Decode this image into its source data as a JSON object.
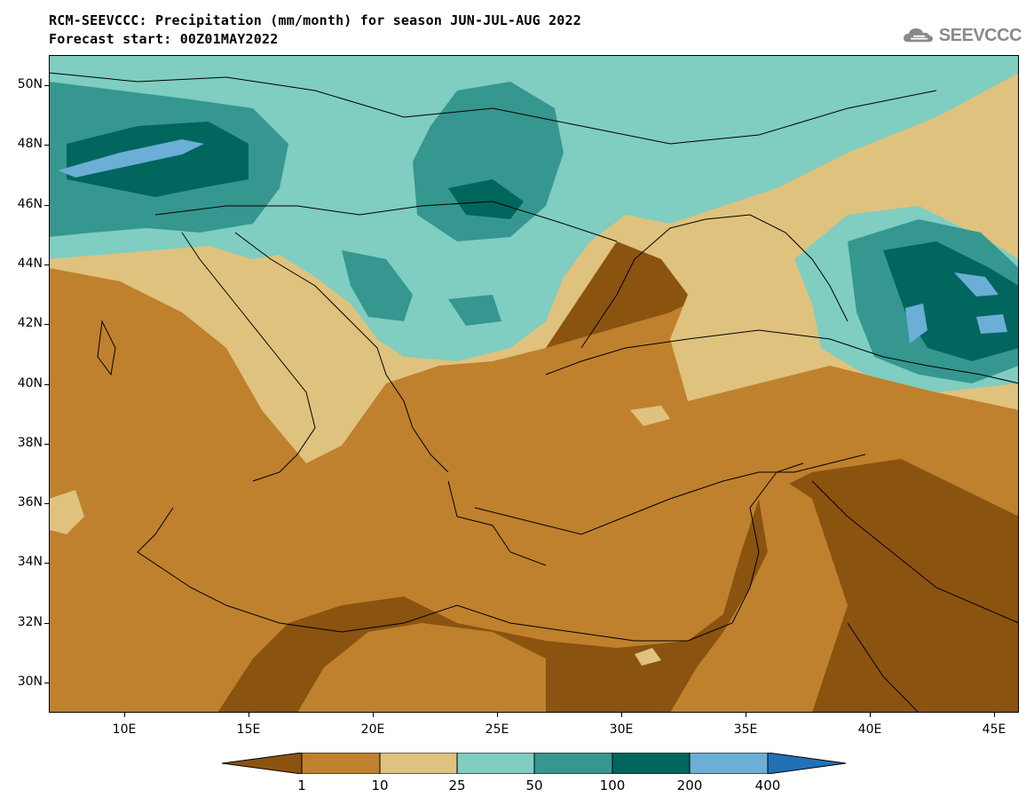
{
  "header": {
    "title_line1": "RCM-SEEVCCC: Precipitation (mm/month) for season JUN-JUL-AUG 2022",
    "title_line2": "Forecast start: 00Z01MAY2022"
  },
  "logo": {
    "text": "SEEVCCC",
    "icon": "cloud-icon",
    "color": "#8a8a8a"
  },
  "map": {
    "region": "Southeast Europe, Mediterranean and Middle East",
    "projection": "lat-lon",
    "lon_range": [
      7,
      46
    ],
    "lat_range": [
      29,
      51
    ],
    "lat_labels": [
      "50N",
      "48N",
      "46N",
      "44N",
      "42N",
      "40N",
      "38N",
      "36N",
      "34N",
      "32N",
      "30N"
    ],
    "lon_labels": [
      "10E",
      "15E",
      "20E",
      "25E",
      "30E",
      "35E",
      "40E",
      "45E"
    ]
  },
  "colorbar": {
    "boundaries": [
      "1",
      "10",
      "25",
      "50",
      "100",
      "200",
      "400"
    ],
    "colors": [
      "#8b5310",
      "#bf812d",
      "#dfc27d",
      "#80cdc1",
      "#35978f",
      "#01665e",
      "#6baed6",
      "#2171b5"
    ]
  }
}
